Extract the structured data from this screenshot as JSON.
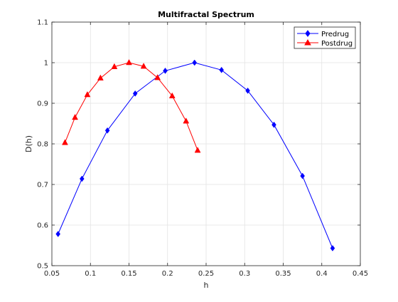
{
  "chart_data": {
    "type": "line",
    "title": "Multifractal Spectrum",
    "xlabel": "h",
    "ylabel": "D(h)",
    "xlim": [
      0.05,
      0.45
    ],
    "ylim": [
      0.5,
      1.1
    ],
    "xticks": [
      0.05,
      0.1,
      0.15,
      0.2,
      0.25,
      0.3,
      0.35,
      0.4,
      0.45
    ],
    "xtick_labels": [
      "0.05",
      "0.1",
      "0.15",
      "0.2",
      "0.25",
      "0.3",
      "0.35",
      "0.4",
      "0.45"
    ],
    "yticks": [
      0.5,
      0.6,
      0.7,
      0.8,
      0.9,
      1.0,
      1.1
    ],
    "ytick_labels": [
      "0.5",
      "0.6",
      "0.7",
      "0.8",
      "0.9",
      "1",
      "1.1"
    ],
    "grid": true,
    "legend_position": "top-right",
    "series": [
      {
        "name": "Predrug",
        "color": "#0000ff",
        "marker": "diamond",
        "x": [
          0.058,
          0.089,
          0.122,
          0.158,
          0.197,
          0.235,
          0.27,
          0.304,
          0.338,
          0.375,
          0.414
        ],
        "y": [
          0.578,
          0.714,
          0.833,
          0.924,
          0.98,
          1.0,
          0.982,
          0.931,
          0.847,
          0.721,
          0.543
        ]
      },
      {
        "name": "Postdrug",
        "color": "#ff0000",
        "marker": "triangle",
        "x": [
          0.067,
          0.08,
          0.096,
          0.113,
          0.131,
          0.15,
          0.169,
          0.187,
          0.206,
          0.224,
          0.239
        ],
        "y": [
          0.803,
          0.865,
          0.921,
          0.962,
          0.99,
          1.0,
          0.991,
          0.963,
          0.918,
          0.856,
          0.784
        ]
      }
    ]
  }
}
